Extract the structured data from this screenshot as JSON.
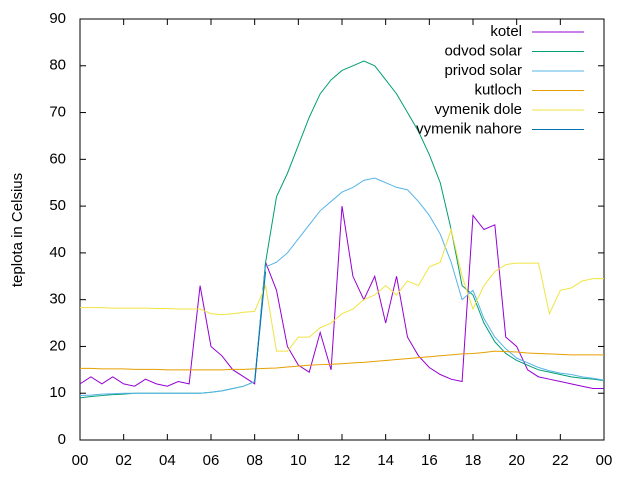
{
  "chart_data": {
    "type": "line",
    "ylabel": "teplota in Celsius",
    "x": [
      0,
      0.5,
      1,
      1.5,
      2,
      2.5,
      3,
      3.5,
      4,
      4.5,
      5,
      5.5,
      6,
      6.5,
      7,
      7.5,
      8,
      8.5,
      9,
      9.5,
      10,
      10.5,
      11,
      11.5,
      12,
      12.5,
      13,
      13.5,
      14,
      14.5,
      15,
      15.5,
      16,
      16.5,
      17,
      17.5,
      18,
      18.5,
      19,
      19.5,
      20,
      20.5,
      21,
      21.5,
      22,
      22.5,
      23,
      23.5,
      24
    ],
    "series": [
      {
        "name": "kotel",
        "color": "#9400d3",
        "values": [
          12,
          13.5,
          12,
          13.5,
          12,
          11.5,
          13,
          12,
          11.5,
          12.5,
          12,
          33,
          20,
          18,
          15,
          13.5,
          12,
          38,
          32,
          20,
          16,
          14.5,
          23,
          15,
          50,
          35,
          30,
          35,
          25,
          35,
          22,
          18,
          15.5,
          14,
          13,
          12.5,
          48,
          45,
          46,
          22,
          20,
          15,
          13.5,
          13,
          12.5,
          12,
          11.5,
          11,
          11
        ]
      },
      {
        "name": "odvod solar",
        "color": "#009e73",
        "values": [
          9,
          9.3,
          9.5,
          9.7,
          9.8,
          10,
          10,
          10,
          10,
          10,
          10,
          10,
          10.2,
          10.5,
          11,
          11.5,
          12.5,
          38,
          52,
          57,
          63,
          69,
          74,
          77,
          79,
          80,
          81,
          80,
          77,
          74,
          70,
          66,
          61,
          55,
          45,
          33,
          31,
          25,
          21,
          18.5,
          17,
          16,
          15,
          14.5,
          14,
          13.5,
          13.2,
          13,
          12.7
        ]
      },
      {
        "name": "privod solar",
        "color": "#56b4e9",
        "values": [
          9.5,
          9.6,
          9.8,
          9.9,
          10,
          10,
          10,
          10,
          10,
          10,
          10,
          10,
          10.2,
          10.5,
          11,
          11.5,
          12.5,
          37,
          38,
          40,
          43,
          46,
          49,
          51,
          53,
          54,
          55.5,
          56,
          55,
          54,
          53.5,
          51,
          48,
          44,
          38,
          30,
          32,
          26,
          22,
          19.5,
          17.5,
          16.5,
          15.5,
          14.8,
          14.3,
          14,
          13.5,
          13.2,
          12.8
        ]
      },
      {
        "name": "kutloch",
        "color": "#e69f00",
        "values": [
          15.3,
          15.3,
          15.2,
          15.2,
          15.2,
          15.1,
          15.1,
          15.1,
          15,
          15,
          15,
          15,
          15,
          15,
          15.1,
          15.1,
          15.2,
          15.3,
          15.4,
          15.6,
          15.8,
          16,
          16.1,
          16.2,
          16.3,
          16.5,
          16.6,
          16.8,
          17,
          17.2,
          17.4,
          17.6,
          17.8,
          18,
          18.2,
          18.4,
          18.5,
          18.7,
          19,
          18.9,
          18.8,
          18.6,
          18.5,
          18.4,
          18.3,
          18.2,
          18.2,
          18.2,
          18.2
        ]
      },
      {
        "name": "vymenik dole",
        "color": "#f0e442",
        "values": [
          28.3,
          28.3,
          28.3,
          28.2,
          28.2,
          28.2,
          28.2,
          28.1,
          28.1,
          28,
          28,
          28,
          27,
          26.8,
          27,
          27.3,
          27.5,
          33,
          19,
          19,
          22,
          22,
          24,
          25,
          27,
          28,
          30,
          31,
          33,
          31,
          34,
          33,
          37,
          38,
          45,
          35,
          28,
          33,
          36,
          37.5,
          37.8,
          37.8,
          37.8,
          27,
          32,
          32.5,
          34,
          34.5,
          34.5
        ]
      },
      {
        "name": "vymenik nahore",
        "color": "#0072b2",
        "values": [
          null,
          null,
          null,
          null,
          null,
          null,
          null,
          null,
          null,
          null,
          null,
          null,
          null,
          null,
          null,
          null,
          12.5,
          36,
          null,
          null,
          null,
          null,
          null,
          null,
          null,
          null,
          null,
          null,
          null,
          null,
          null,
          null,
          null,
          null,
          null,
          null,
          null,
          null,
          null,
          null,
          null,
          null,
          null,
          null,
          null,
          null,
          null,
          null,
          null
        ]
      }
    ],
    "xlim": [
      0,
      24
    ],
    "xticks": [
      {
        "value": 0,
        "label": "00"
      },
      {
        "value": 2,
        "label": "02"
      },
      {
        "value": 4,
        "label": "04"
      },
      {
        "value": 6,
        "label": "06"
      },
      {
        "value": 8,
        "label": "08"
      },
      10,
      12,
      14,
      16,
      18,
      20,
      22,
      {
        "value": 24,
        "label": "00"
      }
    ],
    "ylim": [
      0,
      90
    ],
    "yticks": [
      0,
      10,
      20,
      30,
      40,
      50,
      60,
      70,
      80,
      90
    ],
    "legend": "top-right"
  }
}
